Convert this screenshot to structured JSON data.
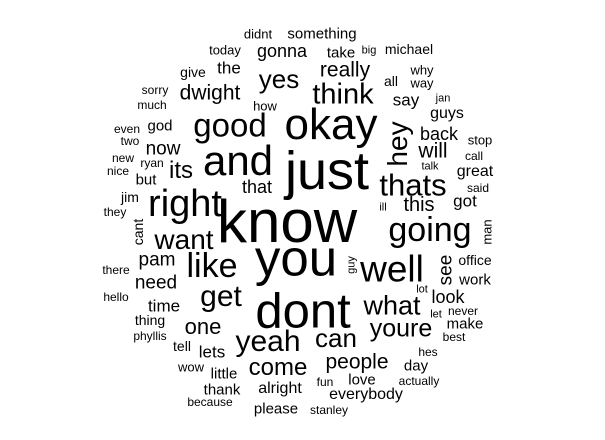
{
  "cloud": {
    "text_color": "#000000",
    "background_color": "#ffffff",
    "words": [
      {
        "text": "know",
        "weight": 60
      },
      {
        "text": "just",
        "weight": 54
      },
      {
        "text": "you",
        "weight": 51
      },
      {
        "text": "dont",
        "weight": 49
      },
      {
        "text": "okay",
        "weight": 44
      },
      {
        "text": "and",
        "weight": 42
      },
      {
        "text": "right",
        "weight": 38
      },
      {
        "text": "well",
        "weight": 37
      },
      {
        "text": "like",
        "weight": 34
      },
      {
        "text": "going",
        "weight": 34
      },
      {
        "text": "good",
        "weight": 33
      },
      {
        "text": "thats",
        "weight": 31
      },
      {
        "text": "get",
        "weight": 30
      },
      {
        "text": "yeah",
        "weight": 30
      },
      {
        "text": "think",
        "weight": 29
      },
      {
        "text": "want",
        "weight": 28
      },
      {
        "text": "hey",
        "weight": 28
      },
      {
        "text": "what",
        "weight": 27
      },
      {
        "text": "youre",
        "weight": 25
      },
      {
        "text": "yes",
        "weight": 26
      },
      {
        "text": "can",
        "weight": 26
      },
      {
        "text": "come",
        "weight": 24
      },
      {
        "text": "its",
        "weight": 24
      },
      {
        "text": "one",
        "weight": 22
      },
      {
        "text": "dwight",
        "weight": 21
      },
      {
        "text": "really",
        "weight": 21
      },
      {
        "text": "will",
        "weight": 21
      },
      {
        "text": "people",
        "weight": 21
      },
      {
        "text": "this",
        "weight": 20
      },
      {
        "text": "now",
        "weight": 19
      },
      {
        "text": "pam",
        "weight": 19
      },
      {
        "text": "need",
        "weight": 19
      },
      {
        "text": "see",
        "weight": 19
      },
      {
        "text": "that",
        "weight": 18
      },
      {
        "text": "gonna",
        "weight": 18
      },
      {
        "text": "back",
        "weight": 18
      },
      {
        "text": "look",
        "weight": 18
      },
      {
        "text": "time",
        "weight": 17
      },
      {
        "text": "lets",
        "weight": 17
      },
      {
        "text": "say",
        "weight": 17
      },
      {
        "text": "the",
        "weight": 17
      },
      {
        "text": "got",
        "weight": 17
      },
      {
        "text": "great",
        "weight": 16
      },
      {
        "text": "everybody",
        "weight": 16
      },
      {
        "text": "alright",
        "weight": 16
      },
      {
        "text": "guys",
        "weight": 16
      },
      {
        "text": "god",
        "weight": 15
      },
      {
        "text": "but",
        "weight": 15
      },
      {
        "text": "something",
        "weight": 15
      },
      {
        "text": "day",
        "weight": 15
      },
      {
        "text": "make",
        "weight": 15
      },
      {
        "text": "work",
        "weight": 15
      },
      {
        "text": "office",
        "weight": 14
      },
      {
        "text": "love",
        "weight": 15
      },
      {
        "text": "thank",
        "weight": 15
      },
      {
        "text": "little",
        "weight": 15
      },
      {
        "text": "please",
        "weight": 15
      },
      {
        "text": "take",
        "weight": 15
      },
      {
        "text": "thing",
        "weight": 14
      },
      {
        "text": "cant",
        "weight": 14
      },
      {
        "text": "michael",
        "weight": 14
      },
      {
        "text": "all",
        "weight": 14
      },
      {
        "text": "man",
        "weight": 13
      },
      {
        "text": "jim",
        "weight": 14
      },
      {
        "text": "give",
        "weight": 14
      },
      {
        "text": "tell",
        "weight": 14
      },
      {
        "text": "how",
        "weight": 13
      },
      {
        "text": "why",
        "weight": 13
      },
      {
        "text": "way",
        "weight": 13
      },
      {
        "text": "didnt",
        "weight": 13
      },
      {
        "text": "today",
        "weight": 13
      },
      {
        "text": "stop",
        "weight": 13
      },
      {
        "text": "call",
        "weight": 12
      },
      {
        "text": "said",
        "weight": 12
      },
      {
        "text": "phyllis",
        "weight": 12
      },
      {
        "text": "wow",
        "weight": 13
      },
      {
        "text": "because",
        "weight": 12
      },
      {
        "text": "fun",
        "weight": 12
      },
      {
        "text": "stanley",
        "weight": 12
      },
      {
        "text": "actually",
        "weight": 12
      },
      {
        "text": "hes",
        "weight": 12
      },
      {
        "text": "best",
        "weight": 12
      },
      {
        "text": "never",
        "weight": 12
      },
      {
        "text": "sorry",
        "weight": 12
      },
      {
        "text": "much",
        "weight": 12
      },
      {
        "text": "even",
        "weight": 12
      },
      {
        "text": "two",
        "weight": 12
      },
      {
        "text": "new",
        "weight": 12
      },
      {
        "text": "ryan",
        "weight": 12
      },
      {
        "text": "nice",
        "weight": 12
      },
      {
        "text": "they",
        "weight": 12
      },
      {
        "text": "there",
        "weight": 12
      },
      {
        "text": "hello",
        "weight": 12
      },
      {
        "text": "big",
        "weight": 11
      },
      {
        "text": "jan",
        "weight": 11
      },
      {
        "text": "talk",
        "weight": 11
      },
      {
        "text": "ill",
        "weight": 11
      },
      {
        "text": "guy",
        "weight": 11
      },
      {
        "text": "lot",
        "weight": 11
      },
      {
        "text": "let",
        "weight": 11
      }
    ]
  }
}
